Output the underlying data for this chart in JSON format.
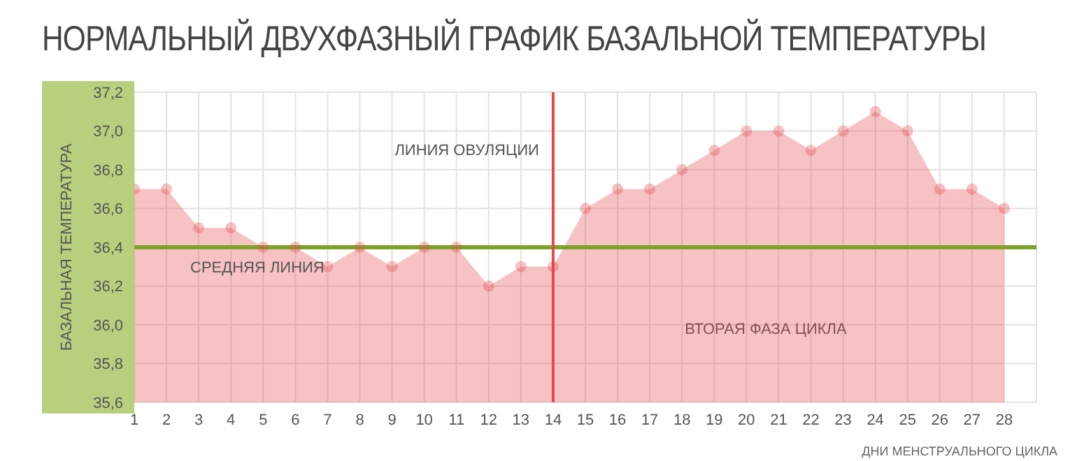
{
  "chart_data": {
    "type": "area",
    "title": "НОРМАЛЬНЫЙ ДВУХФАЗНЫЙ ГРАФИК БАЗАЛЬНОЙ ТЕМПЕРАТУРЫ",
    "ylabel": "БАЗАЛЬНАЯ ТЕМПЕРАТУРА",
    "xlabel": "ДНИ МЕНСТРУАЛЬНОГО ЦИКЛА",
    "x": [
      1,
      2,
      3,
      4,
      5,
      6,
      7,
      8,
      9,
      10,
      11,
      12,
      13,
      14,
      15,
      16,
      17,
      18,
      19,
      20,
      21,
      22,
      23,
      24,
      25,
      26,
      27,
      28
    ],
    "series": [
      {
        "color": "#e8474c",
        "values": [
          36.7,
          36.7,
          36.5,
          36.5,
          36.4,
          36.4,
          36.3,
          36.4,
          36.3,
          36.4,
          36.4,
          36.2,
          36.3,
          36.3,
          36.6,
          36.7,
          36.7,
          36.8,
          36.9,
          37.0,
          37.0,
          36.9,
          37.0,
          37.1,
          37.0,
          36.7,
          36.7,
          36.6
        ]
      }
    ],
    "xlim": [
      1,
      29
    ],
    "xticks": [
      1,
      2,
      3,
      4,
      5,
      6,
      7,
      8,
      9,
      10,
      11,
      12,
      13,
      14,
      15,
      16,
      17,
      18,
      19,
      20,
      21,
      22,
      23,
      24,
      25,
      26,
      27,
      28
    ],
    "ylim": [
      35.6,
      37.2
    ],
    "yticks": [
      {
        "value": 35.6,
        "label": "35,6"
      },
      {
        "value": 35.8,
        "label": "35,8"
      },
      {
        "value": 36.0,
        "label": "36,0"
      },
      {
        "value": 36.2,
        "label": "36,2"
      },
      {
        "value": 36.4,
        "label": "36,4"
      },
      {
        "value": 36.6,
        "label": "36,6"
      },
      {
        "value": 36.8,
        "label": "36,8"
      },
      {
        "value": 37.0,
        "label": "37,0"
      },
      {
        "value": 37.2,
        "label": "37,2"
      }
    ],
    "ref_lines": [
      {
        "axis": "y",
        "value": 36.4,
        "label": "СРЕДНЯЯ ЛИНИЯ",
        "color": "#7ba428"
      },
      {
        "axis": "x",
        "value": 14,
        "label": "ЛИНИЯ ОВУЛЯЦИИ",
        "color": "#e8474c"
      }
    ],
    "annotations": [
      "ВТОРАЯ ФАЗА ЦИКЛА"
    ],
    "grid": true,
    "marker": "circle",
    "legend": false
  }
}
